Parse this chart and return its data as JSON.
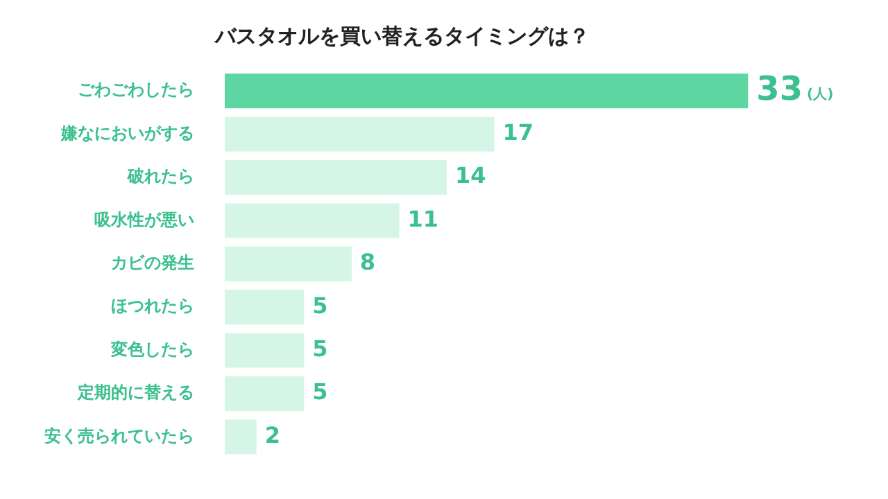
{
  "chart_data": {
    "type": "bar",
    "orientation": "horizontal",
    "title": "バスタオルを買い替えるタイミングは？",
    "categories": [
      "ごわごわしたら",
      "嫌なにおいがする",
      "破れたら",
      "吸水性が悪い",
      "カビの発生",
      "ほつれたら",
      "変色したら",
      "定期的に替える",
      "安く売られていたら"
    ],
    "values": [
      33,
      17,
      14,
      11,
      8,
      5,
      5,
      5,
      2
    ],
    "colors": [
      "#5ed6a2",
      "#d5f5e6",
      "#d5f5e6",
      "#d5f5e6",
      "#d5f5e6",
      "#d5f5e6",
      "#d5f5e6",
      "#d5f5e6",
      "#d5f5e6"
    ],
    "data_labels": true,
    "annotations": [
      "(人)"
    ],
    "tick_labels": "y",
    "grid": false,
    "legend": false
  }
}
